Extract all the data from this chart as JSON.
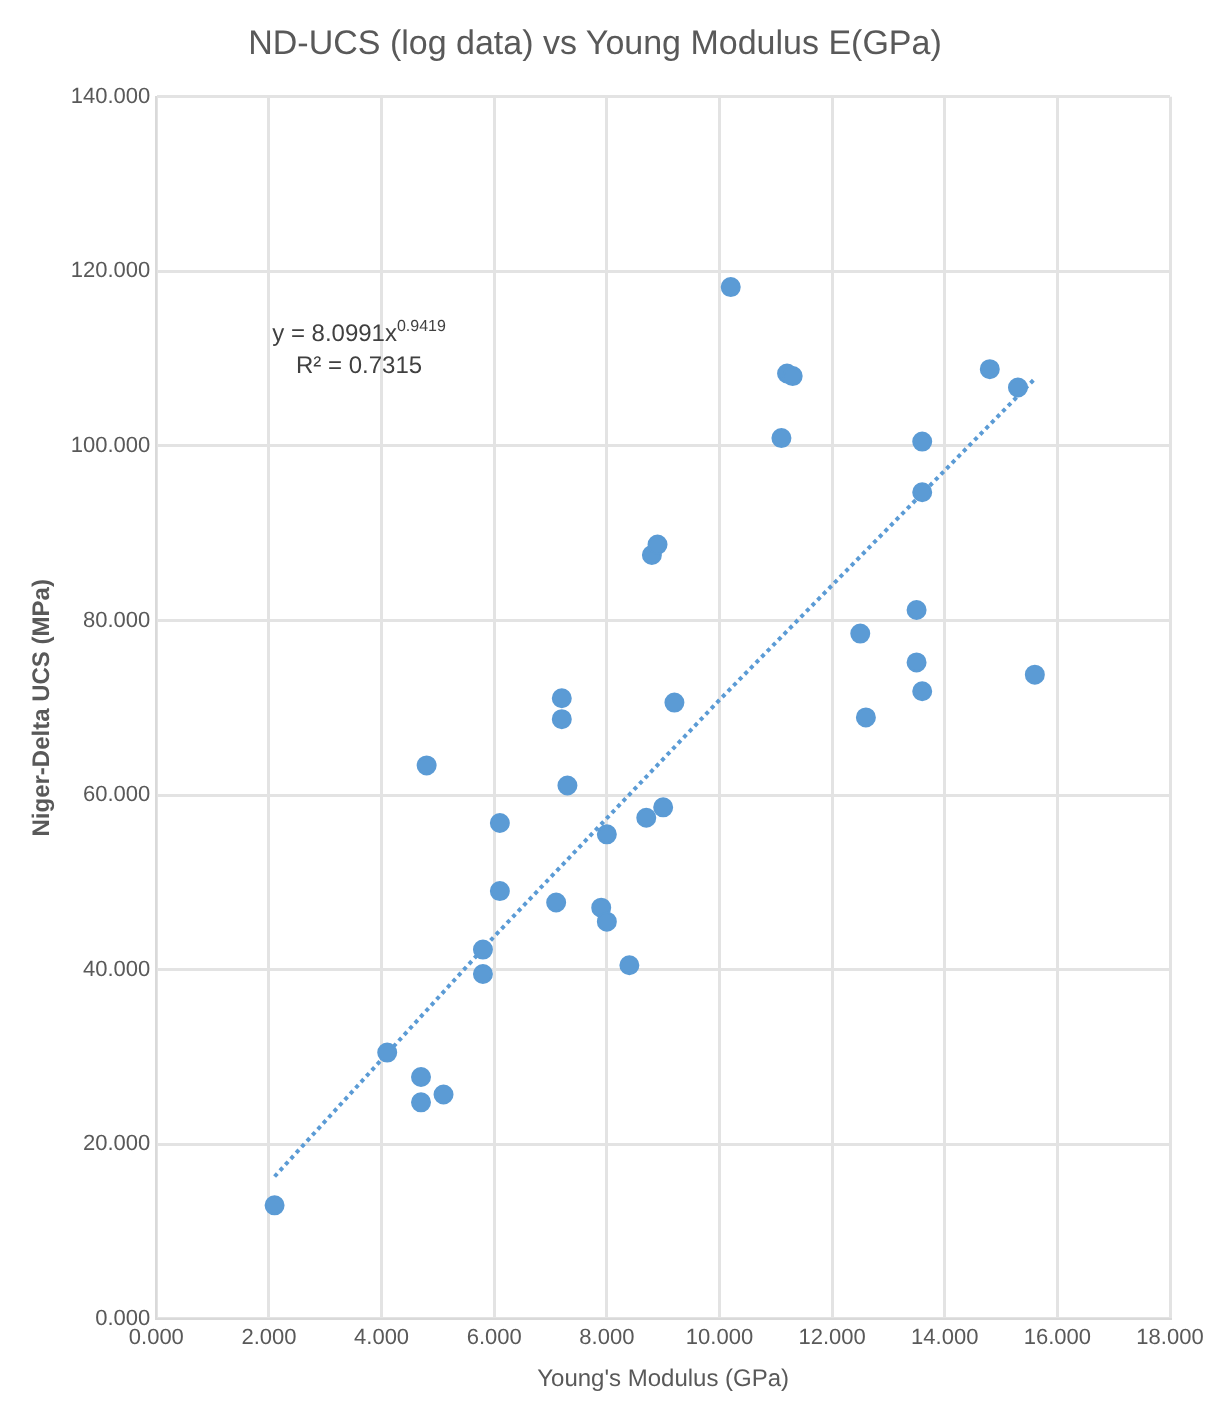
{
  "chart_data": {
    "type": "scatter",
    "title": "ND-UCS (log data) vs Young Modulus E(GPa)",
    "xlabel": "Young's Modulus (GPa)",
    "ylabel": "Niger-Delta UCS (MPa)",
    "annotations": [
      "y = 8.0991x$^{0.9419}$",
      "R² = 0.7315"
    ],
    "xlim": [
      0,
      18
    ],
    "ylim": [
      0,
      140
    ],
    "xticks": [
      {
        "value": 0,
        "label": "0.000"
      },
      {
        "value": 2,
        "label": "2.000"
      },
      {
        "value": 4,
        "label": "4.000"
      },
      {
        "value": 6,
        "label": "6.000"
      },
      {
        "value": 8,
        "label": "8.000"
      },
      {
        "value": 10,
        "label": "10.000"
      },
      {
        "value": 12,
        "label": "12.000"
      },
      {
        "value": 14,
        "label": "14.000"
      },
      {
        "value": 16,
        "label": "16.000"
      },
      {
        "value": 18,
        "label": "18.000"
      }
    ],
    "yticks": [
      {
        "value": 0,
        "label": "0.000"
      },
      {
        "value": 20,
        "label": "20.000"
      },
      {
        "value": 40,
        "label": "40.000"
      },
      {
        "value": 60,
        "label": "60.000"
      },
      {
        "value": 80,
        "label": "80.000"
      },
      {
        "value": 100,
        "label": "100.000"
      },
      {
        "value": 120,
        "label": "120.000"
      },
      {
        "value": 140,
        "label": "140.000"
      }
    ],
    "grid": true,
    "legend": false,
    "marker": "circle",
    "series": [
      {
        "type": "scatter",
        "color": "#5b9bd5",
        "x": [
          2.1,
          4.1,
          4.7,
          4.7,
          5.1,
          4.8,
          5.8,
          5.8,
          6.1,
          6.1,
          7.2,
          7.2,
          7.3,
          7.1,
          7.9,
          8.0,
          8.0,
          8.4,
          8.7,
          9.0,
          9.2,
          8.8,
          8.9,
          10.2,
          11.2,
          11.3,
          11.1,
          13.6,
          13.6,
          14.8,
          15.3,
          13.5,
          12.5,
          13.5,
          13.6,
          12.6,
          15.6
        ],
        "values": [
          13.0,
          30.5,
          27.7,
          24.8,
          25.7,
          63.4,
          42.3,
          39.5,
          56.8,
          49.0,
          71.1,
          68.7,
          61.1,
          47.7,
          47.1,
          45.5,
          55.5,
          40.5,
          57.4,
          58.6,
          70.6,
          87.5,
          88.7,
          118.2,
          108.3,
          108.0,
          100.9,
          100.5,
          94.7,
          108.8,
          106.7,
          81.2,
          78.5,
          75.2,
          71.9,
          68.9,
          73.8
        ]
      },
      {
        "type": "line",
        "color": "#5b9bd5",
        "line_style": "dotted",
        "marker": "none",
        "x": [
          2.1,
          6,
          10,
          15.6
        ],
        "values": [
          16.3,
          43.8,
          70.9,
          107.7
        ]
      }
    ]
  }
}
